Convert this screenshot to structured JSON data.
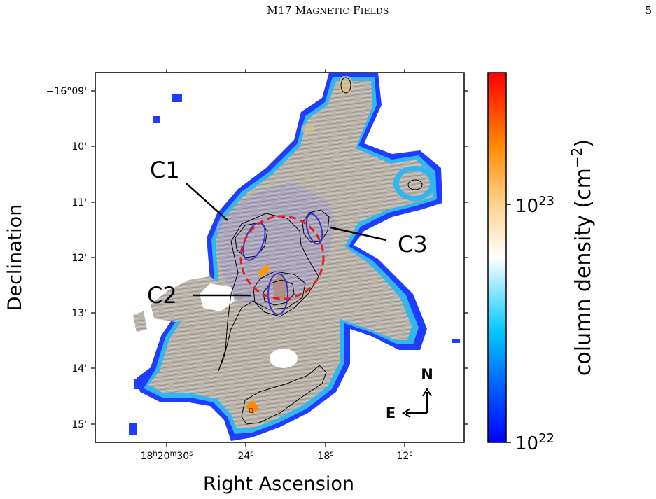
{
  "header": {
    "title_prefix": "M17 M",
    "title_sc1": "AGNETIC",
    "title_mid": " F",
    "title_sc2": "IELDS",
    "page_number": "5"
  },
  "figure": {
    "xlabel": "Right Ascension",
    "ylabel": "Declination",
    "colorbar_label_main": "column density (cm",
    "colorbar_label_exp": "−2",
    "colorbar_label_close": ")",
    "colorbar_ticks": [
      {
        "base": "10",
        "exp": "22"
      },
      {
        "base": "10",
        "exp": "23"
      }
    ],
    "ra_ticks": [
      {
        "h": "18",
        "m": "20",
        "s": "30",
        "short": ""
      },
      {
        "short": "24"
      },
      {
        "short": "18"
      },
      {
        "short": "12"
      }
    ],
    "dec_ticks": [
      "−16°09'",
      "10'",
      "11'",
      "12'",
      "13'",
      "14'",
      "15'"
    ],
    "regions": [
      "C1",
      "C2",
      "C3"
    ],
    "compass": {
      "north": "N",
      "east": "E"
    },
    "colors": {
      "low": "#0000ff",
      "mid": "#ffffff",
      "high": "#ff0000",
      "circle": "#e3201b",
      "ellipse": "#3a2fd0",
      "contour": "#000000",
      "texture": "#bdb8b0"
    }
  }
}
